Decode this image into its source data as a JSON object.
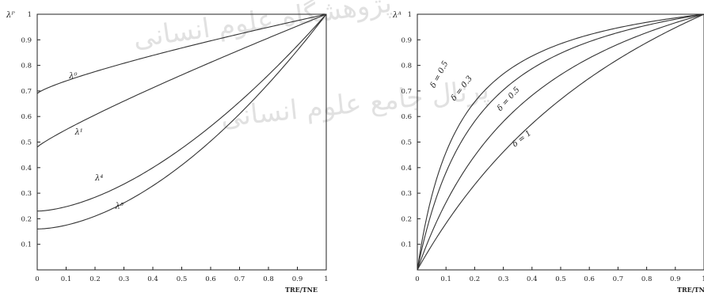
{
  "chart_data": [
    {
      "type": "line",
      "title": "",
      "xlabel": "TRE/TNE",
      "ylabel": "λᴾ",
      "xlim": [
        0,
        1
      ],
      "ylim": [
        0,
        1
      ],
      "xticks": [
        "0",
        "0.1",
        "0.2",
        "0.3",
        "0.4",
        "0.5",
        "0.6",
        "0.7",
        "0.8",
        "0.9",
        "1"
      ],
      "yticks": [
        "0.1",
        "0.2",
        "0.3",
        "0.4",
        "0.5",
        "0.6",
        "0.7",
        "0.8",
        "0.9",
        "1"
      ],
      "series": [
        {
          "name": "λ⁰",
          "y0": 0.69,
          "gamma": 0.8,
          "label_pos": [
            0.11,
            0.75
          ]
        },
        {
          "name": "λ¹",
          "y0": 0.48,
          "gamma": 0.88,
          "label_pos": [
            0.13,
            0.53
          ]
        },
        {
          "name": "λ⁴",
          "y0": 0.23,
          "gamma": 1.65,
          "label_pos": [
            0.2,
            0.35
          ]
        },
        {
          "name": "λ⁵",
          "y0": 0.16,
          "gamma": 1.75,
          "label_pos": [
            0.27,
            0.24
          ]
        }
      ]
    },
    {
      "type": "line",
      "title": "",
      "xlabel": "TRE/TNE",
      "ylabel": "λᴬ",
      "xlim": [
        0,
        1
      ],
      "ylim": [
        0,
        1
      ],
      "xticks": [
        "0",
        "0.1",
        "0.2",
        "0.3",
        "0.4",
        "0.5",
        "0.6",
        "0.7",
        "0.8",
        "0.9",
        "1"
      ],
      "yticks": [
        "0.1",
        "0.2",
        "0.3",
        "0.4",
        "0.5",
        "0.6",
        "0.7",
        "0.8",
        "0.9",
        "1"
      ],
      "series": [
        {
          "name": "δ = 0.5",
          "k": 0.15,
          "label_pos": [
            0.06,
            0.71
          ]
        },
        {
          "name": "δ = 0.3",
          "k": 0.22,
          "label_pos": [
            0.13,
            0.66
          ]
        },
        {
          "name": "δ = 0.5",
          "k": 0.45,
          "label_pos": [
            0.29,
            0.62
          ]
        },
        {
          "name": "δ = 1",
          "k": 1.0,
          "label_pos": [
            0.34,
            0.48
          ]
        }
      ]
    }
  ]
}
